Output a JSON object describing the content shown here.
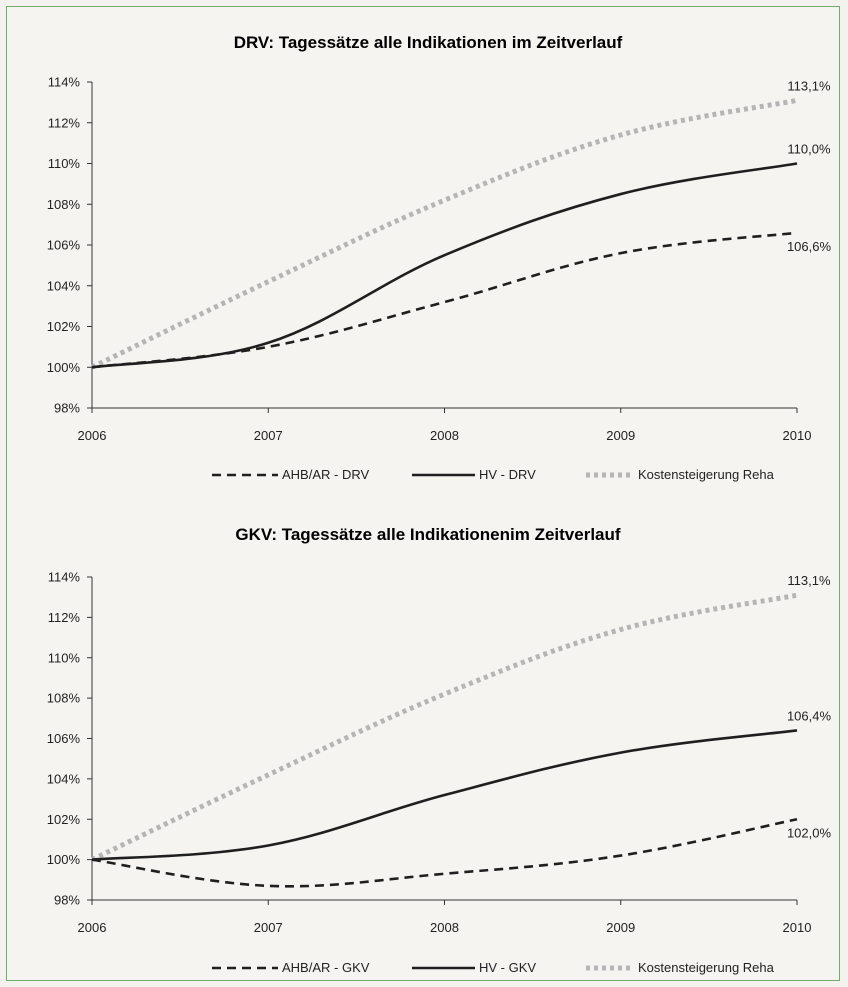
{
  "colors": {
    "background": "#f5f4f0",
    "frame": "#6fae6a",
    "hv": "#1f1f1f",
    "ahb": "#1f1f1f",
    "reha": "#b5b5b5",
    "axis": "#333333"
  },
  "chart_data": [
    {
      "type": "line",
      "title": "DRV: Tagessätze alle Indikationen im Zeitverlauf",
      "xlabel": "",
      "ylabel": "",
      "x": [
        "2006",
        "2007",
        "2008",
        "2009",
        "2010"
      ],
      "y_ticks": [
        "98%",
        "100%",
        "102%",
        "104%",
        "106%",
        "108%",
        "110%",
        "112%",
        "114%"
      ],
      "ylim": [
        98,
        114
      ],
      "grid": false,
      "legend_position": "bottom",
      "series": [
        {
          "name": "AHB/AR - DRV",
          "style": "dashed",
          "values": [
            100.0,
            101.0,
            103.2,
            105.6,
            106.6
          ],
          "end_label": "106,6%"
        },
        {
          "name": "HV - DRV",
          "style": "solid",
          "values": [
            100.0,
            101.2,
            105.5,
            108.5,
            110.0
          ],
          "end_label": "110,0%"
        },
        {
          "name": "Kostensteigerung Reha",
          "style": "dotted",
          "values": [
            100.0,
            104.2,
            108.2,
            111.4,
            113.1
          ],
          "end_label": "113,1%"
        }
      ]
    },
    {
      "type": "line",
      "title": "GKV: Tagessätze alle Indikationenim Zeitverlauf",
      "xlabel": "",
      "ylabel": "",
      "x": [
        "2006",
        "2007",
        "2008",
        "2009",
        "2010"
      ],
      "y_ticks": [
        "98%",
        "100%",
        "102%",
        "104%",
        "106%",
        "108%",
        "110%",
        "112%",
        "114%"
      ],
      "ylim": [
        98,
        114
      ],
      "grid": false,
      "legend_position": "bottom",
      "series": [
        {
          "name": "AHB/AR - GKV",
          "style": "dashed",
          "values": [
            100.0,
            98.7,
            99.3,
            100.2,
            102.0
          ],
          "end_label": "102,0%"
        },
        {
          "name": "HV - GKV",
          "style": "solid",
          "values": [
            100.0,
            100.7,
            103.2,
            105.3,
            106.4
          ],
          "end_label": "106,4%"
        },
        {
          "name": "Kostensteigerung Reha",
          "style": "dotted",
          "values": [
            100.0,
            104.2,
            108.2,
            111.4,
            113.1
          ],
          "end_label": "113,1%"
        }
      ]
    }
  ]
}
